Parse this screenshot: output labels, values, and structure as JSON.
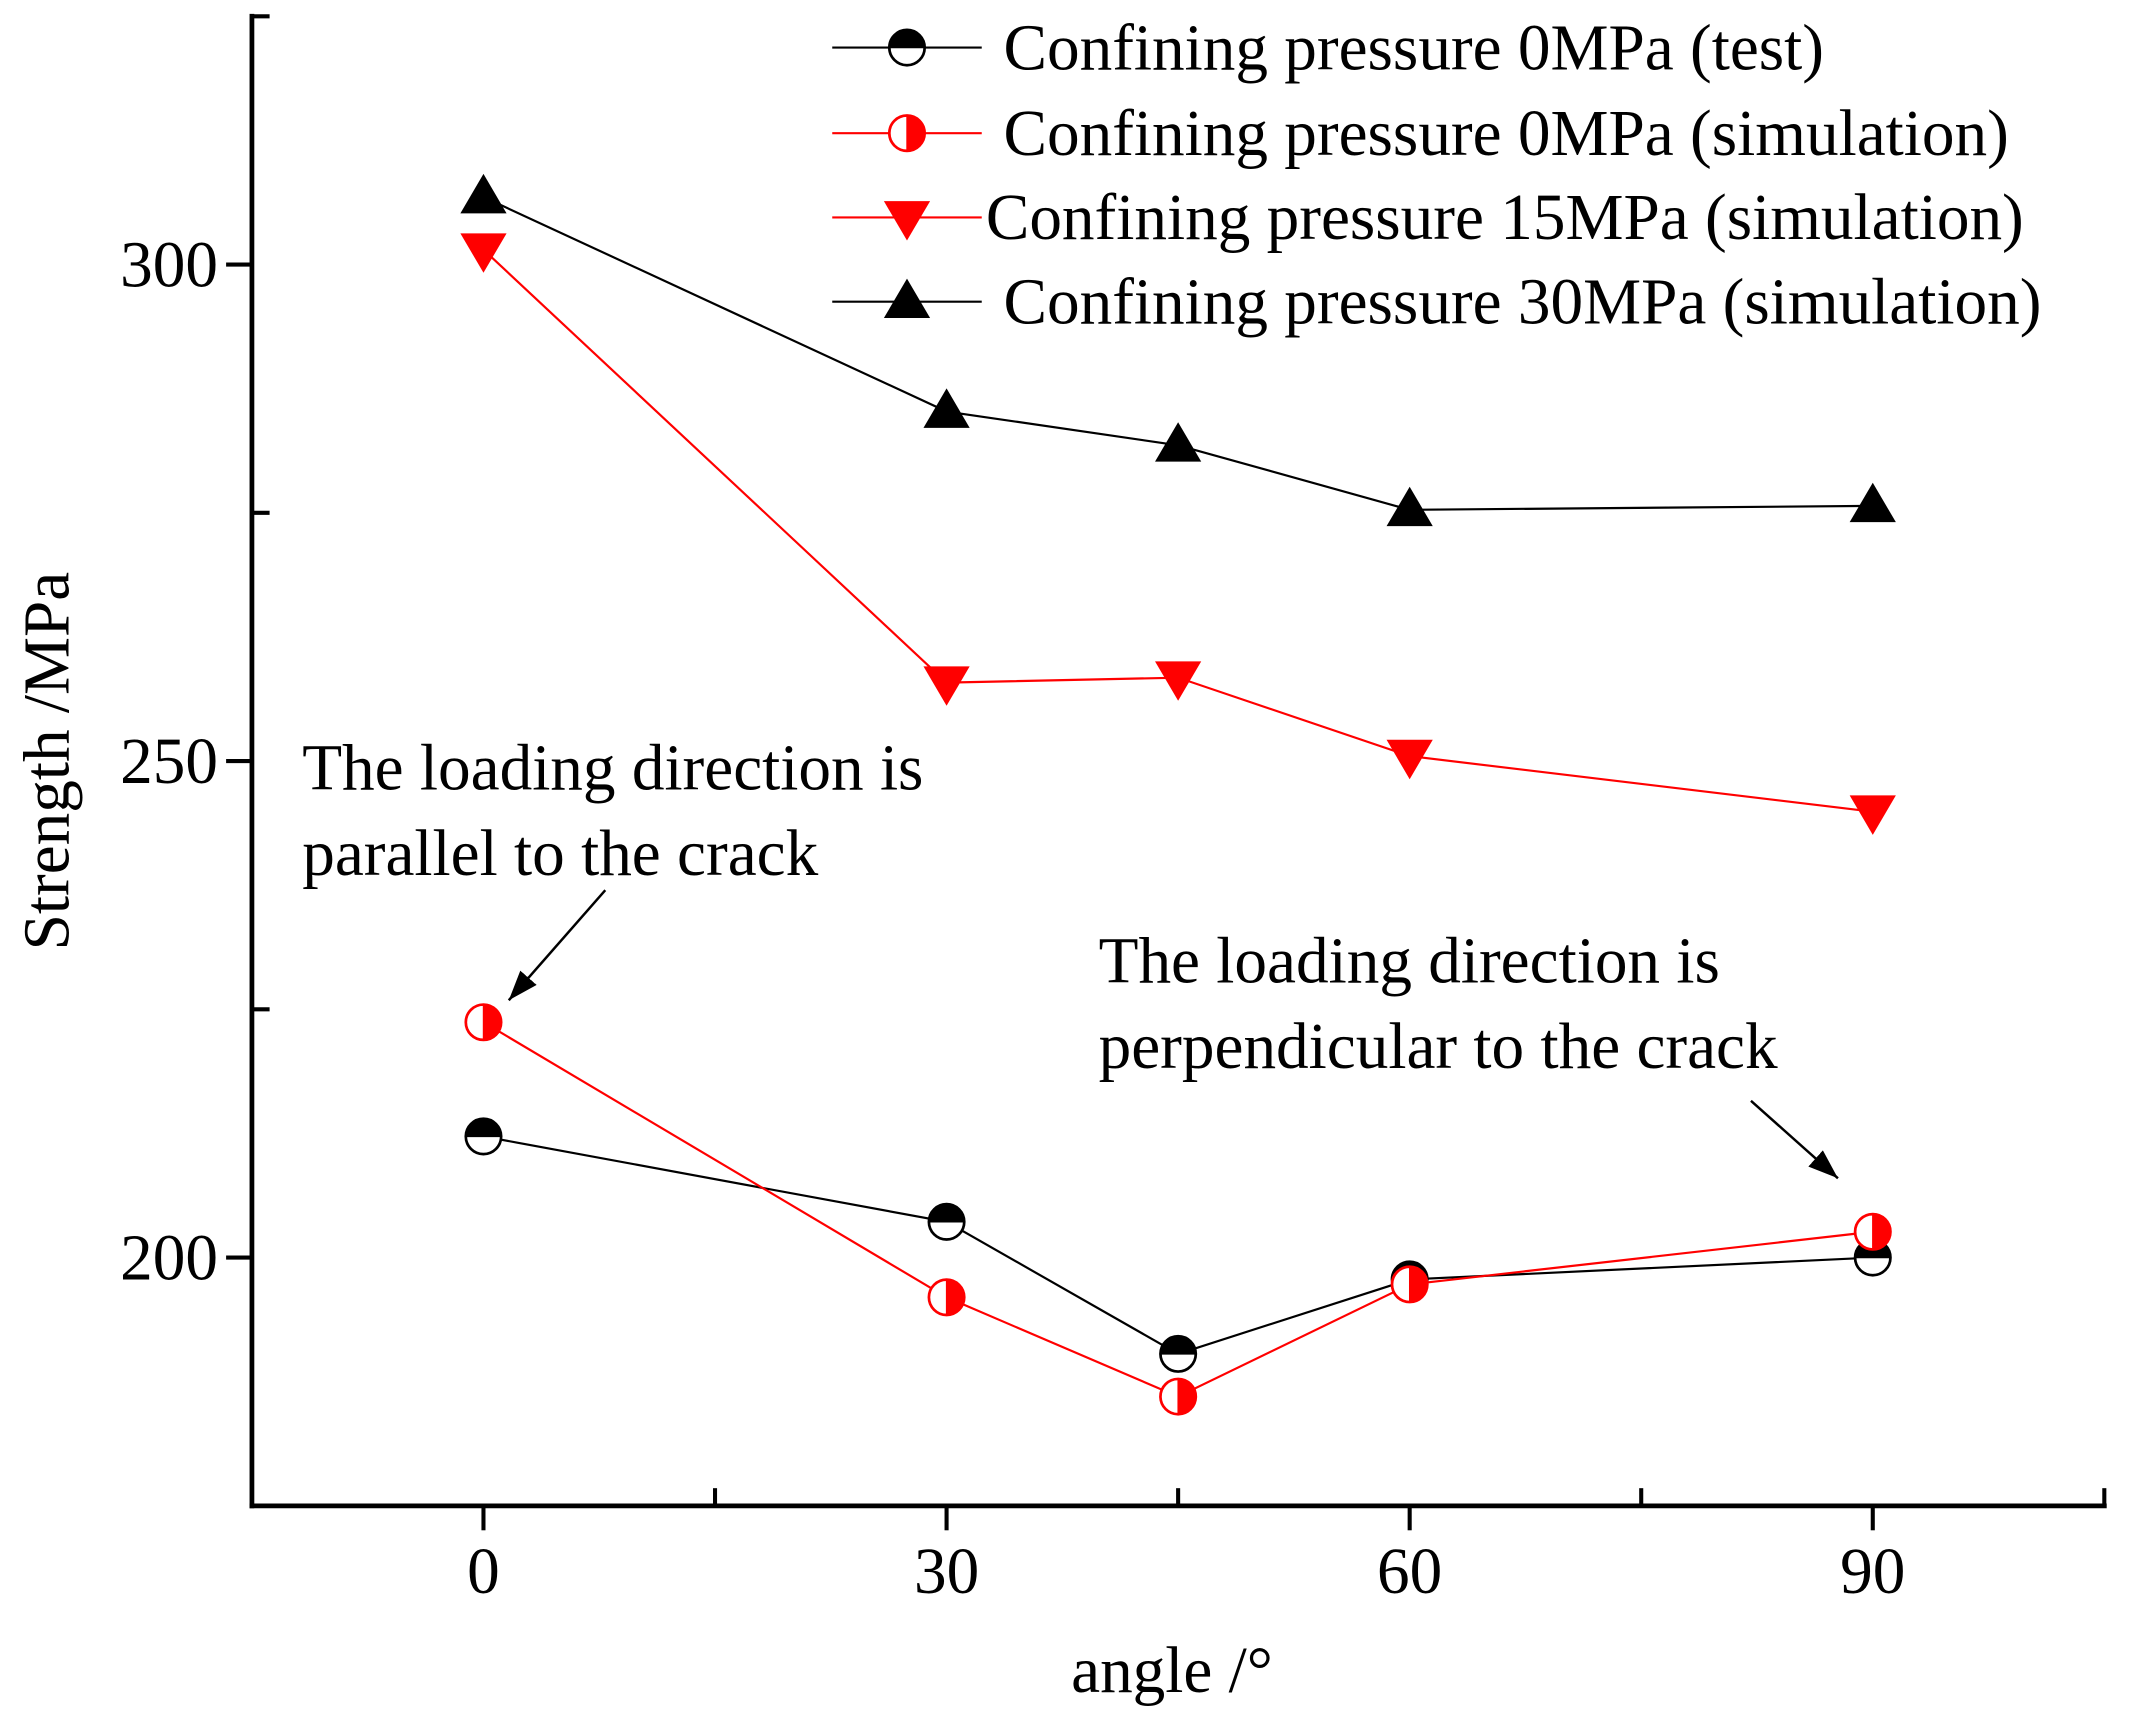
{
  "chart_data": {
    "type": "line",
    "xlabel": "angle /°",
    "ylabel": "Strength /MPa",
    "xlim": [
      -15,
      105
    ],
    "ylim": [
      175,
      325
    ],
    "xticks": [
      0,
      30,
      60,
      90
    ],
    "x_minor_ticks": [
      15,
      45,
      75,
      105
    ],
    "yticks": [
      200,
      250,
      300
    ],
    "y_minor_ticks": [
      225,
      275,
      325
    ],
    "grid": false,
    "legend_position": "top-right",
    "x": [
      0,
      30,
      45,
      60,
      90
    ],
    "series": [
      {
        "name": "Confining pressure 0MPa (test)",
        "color": "#000000",
        "marker": "half-filled-circle-top",
        "values": [
          212.2,
          203.6,
          190.3,
          197.8,
          200.0
        ]
      },
      {
        "name": "Confining pressure 0MPa (simulation)",
        "color": "#ff0000",
        "marker": "half-filled-circle-right",
        "values": [
          223.7,
          196.0,
          186.0,
          197.3,
          202.6
        ]
      },
      {
        "name": "Confining pressure 15MPa (simulation)",
        "color": "#ff0000",
        "marker": "triangle-down",
        "values": [
          301.5,
          257.9,
          258.4,
          250.5,
          244.9
        ]
      },
      {
        "name": "Confining pressure 30MPa (simulation)",
        "color": "#000000",
        "marker": "triangle-up",
        "values": [
          306.8,
          285.2,
          281.8,
          275.3,
          275.7
        ]
      }
    ],
    "annotations": [
      {
        "lines": [
          "The loading direction is",
          "parallel to the crack"
        ],
        "points_to": [
          0,
          223.7
        ]
      },
      {
        "lines": [
          "The loading direction is",
          "perpendicular to the crack"
        ],
        "points_to": [
          90,
          202.6
        ]
      }
    ]
  }
}
